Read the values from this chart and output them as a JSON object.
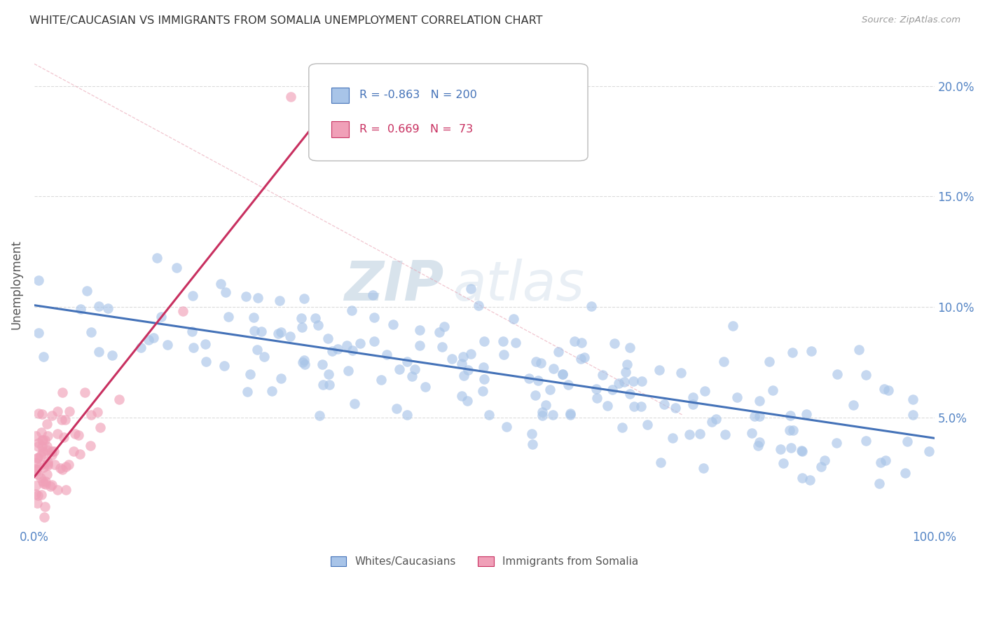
{
  "title": "WHITE/CAUCASIAN VS IMMIGRANTS FROM SOMALIA UNEMPLOYMENT CORRELATION CHART",
  "source": "Source: ZipAtlas.com",
  "ylabel": "Unemployment",
  "xlim": [
    0,
    1.0
  ],
  "ylim": [
    0,
    0.22
  ],
  "yticks": [
    0.05,
    0.1,
    0.15,
    0.2
  ],
  "ytick_labels": [
    "5.0%",
    "10.0%",
    "15.0%",
    "20.0%"
  ],
  "xticks": [
    0.0,
    0.2,
    0.4,
    0.6,
    0.8,
    1.0
  ],
  "xtick_labels": [
    "0.0%",
    "",
    "",
    "",
    "",
    "100.0%"
  ],
  "blue_scatter_color": "#a8c4e8",
  "pink_scatter_color": "#f0a0b8",
  "blue_line_color": "#4472b8",
  "pink_line_color": "#c83060",
  "dashed_line_color": "#e8a0b0",
  "watermark_zip": "ZIP",
  "watermark_atlas": "atlas",
  "background_color": "#ffffff",
  "title_color": "#333333",
  "axis_label_color": "#555555",
  "tick_label_color": "#5585c5",
  "grid_color": "#cccccc",
  "blue_seed": 42,
  "pink_seed": 77,
  "blue_n": 200,
  "pink_n": 73,
  "blue_R": -0.863,
  "blue_N": 200,
  "pink_R": 0.669,
  "pink_N": 73
}
